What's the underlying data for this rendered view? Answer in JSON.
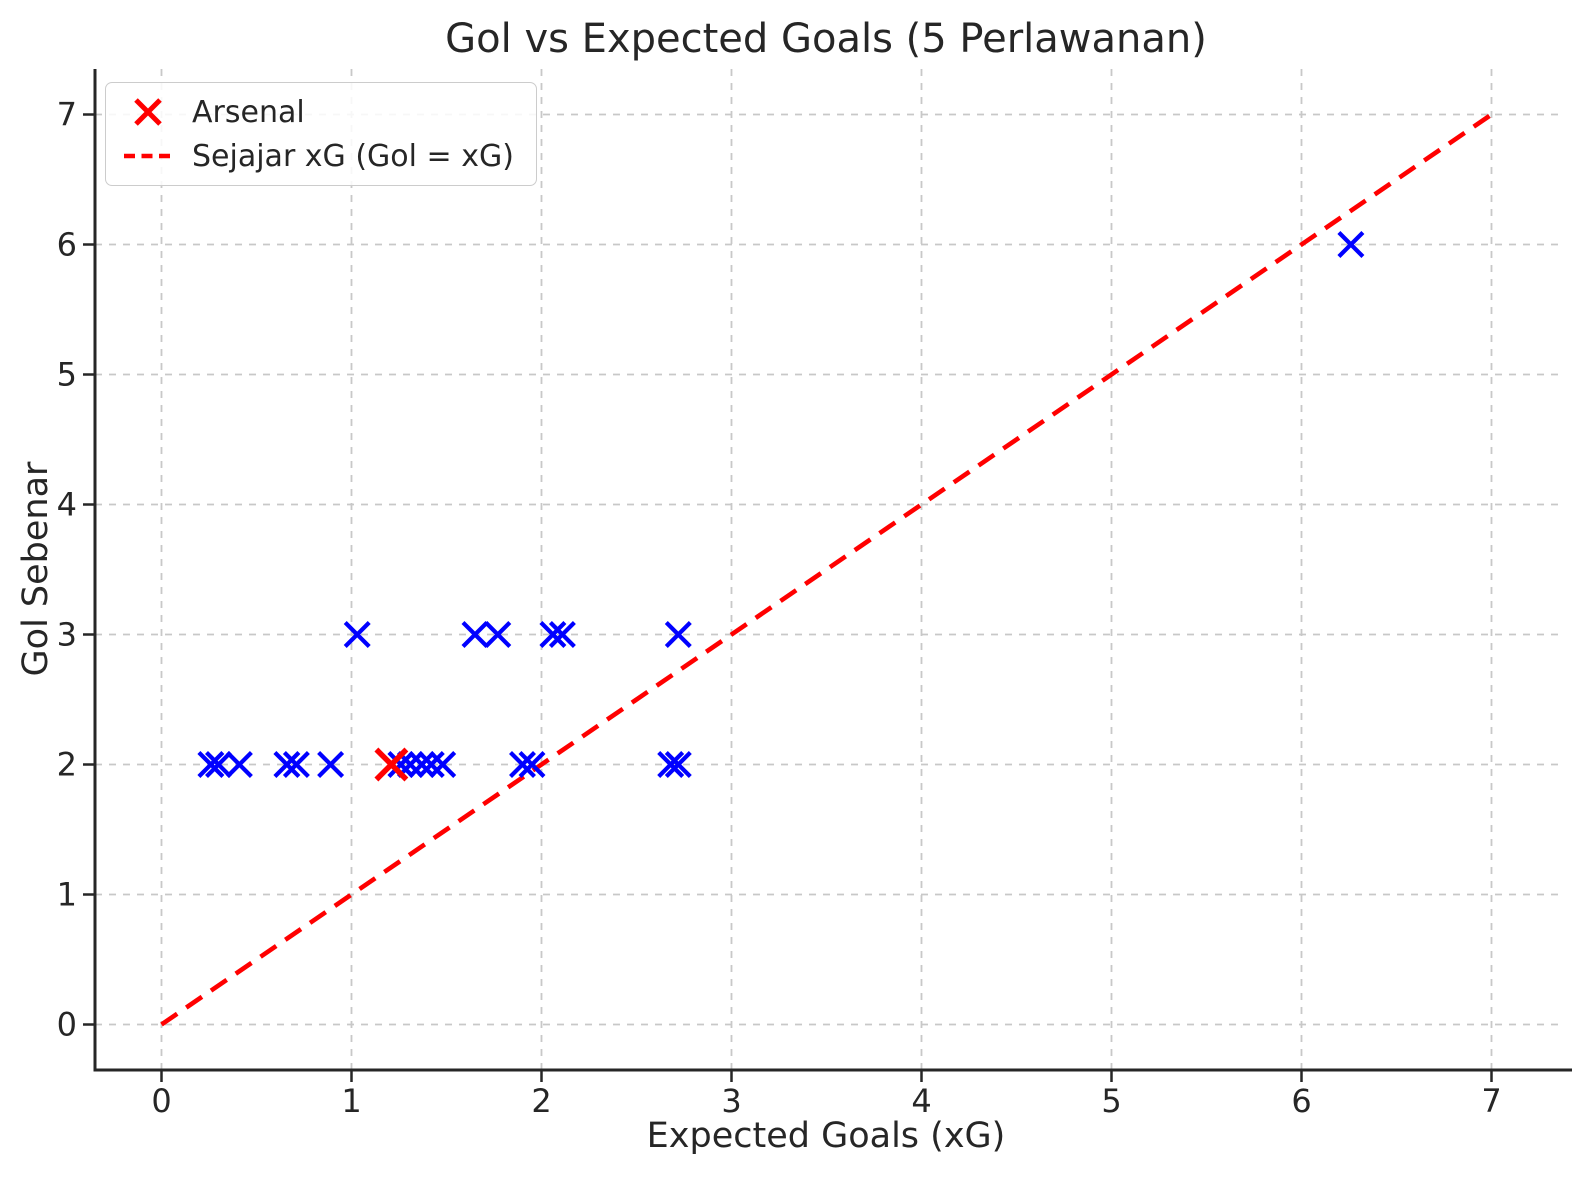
{
  "chart_data": {
    "type": "scatter",
    "title": "Gol vs Expected Goals (5 Perlawanan)",
    "xlabel": "Expected Goals (xG)",
    "ylabel": "Gol Sebenar",
    "xlim": [
      -0.35,
      7.35
    ],
    "ylim": [
      -0.35,
      7.35
    ],
    "xticks": [
      0,
      1,
      2,
      3,
      4,
      5,
      6,
      7
    ],
    "yticks": [
      0,
      1,
      2,
      3,
      4,
      5,
      6,
      7
    ],
    "grid": {
      "visible": true,
      "style": "dashed"
    },
    "legend": [
      {
        "label": "Arsenal",
        "symbol": "x-marker",
        "color": "#ff0000"
      },
      {
        "label": "Sejajar xG (Gol = xG)",
        "symbol": "dashed-line",
        "color": "#ff0000"
      }
    ],
    "series": [
      {
        "name": "matches",
        "marker": "x",
        "color": "#0000ff",
        "in_legend": false,
        "points": [
          [
            0.26,
            2
          ],
          [
            0.3,
            2
          ],
          [
            0.41,
            2
          ],
          [
            0.66,
            2
          ],
          [
            0.71,
            2
          ],
          [
            0.89,
            2
          ],
          [
            1.26,
            2
          ],
          [
            1.31,
            2
          ],
          [
            1.37,
            2
          ],
          [
            1.42,
            2
          ],
          [
            1.48,
            2
          ],
          [
            1.9,
            2
          ],
          [
            1.95,
            2
          ],
          [
            2.68,
            2
          ],
          [
            2.72,
            2
          ],
          [
            1.03,
            3
          ],
          [
            1.65,
            3
          ],
          [
            1.77,
            3
          ],
          [
            2.06,
            3
          ],
          [
            2.11,
            3
          ],
          [
            2.72,
            3
          ],
          [
            6.26,
            6
          ]
        ]
      },
      {
        "name": "Arsenal",
        "marker": "x",
        "color": "#ff0000",
        "in_legend": true,
        "points": [
          [
            1.21,
            2
          ]
        ]
      }
    ],
    "reference_line": {
      "name": "Sejajar xG (Gol = xG)",
      "from": [
        0,
        0
      ],
      "to": [
        7,
        7
      ],
      "color": "#ff0000",
      "style": "dashed"
    },
    "colors": {
      "points": "#0000ff",
      "arsenal": "#ff0000",
      "line": "#ff0000",
      "grid": "#c8c8c8",
      "axis": "#262626",
      "text": "#262626",
      "background": "#ffffff"
    }
  }
}
